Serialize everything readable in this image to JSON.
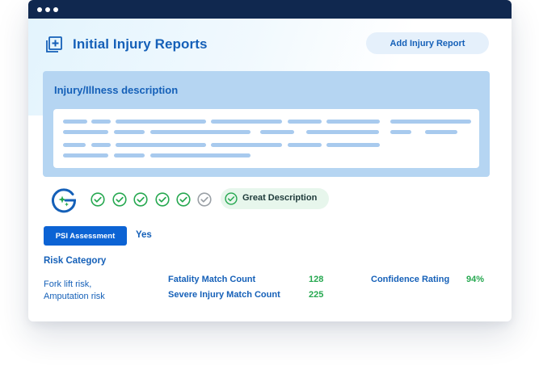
{
  "window": {
    "controls": [
      "dot",
      "dot",
      "dot"
    ]
  },
  "header": {
    "title": "Initial Injury Reports",
    "icon": "add-document-icon",
    "add_button_label": "Add Injury Report"
  },
  "description": {
    "label": "Injury/Illness description",
    "content_state": "redacted-placeholder-lines"
  },
  "quality": {
    "logo": "g-sparkle-logo",
    "checks": [
      {
        "state": "passed"
      },
      {
        "state": "passed"
      },
      {
        "state": "passed"
      },
      {
        "state": "passed"
      },
      {
        "state": "passed"
      },
      {
        "state": "pending"
      }
    ],
    "badge_label": "Great Description"
  },
  "psi": {
    "button_label": "PSI Assessment",
    "value": "Yes"
  },
  "risk": {
    "heading": "Risk Category",
    "lines": [
      "Fork lift risk,",
      "Amputation risk"
    ]
  },
  "stats": {
    "fatality_label": "Fatality Match Count",
    "fatality_value": "128",
    "severe_label": "Severe Injury Match Count",
    "severe_value": "225",
    "confidence_label": "Confidence Rating",
    "confidence_value": "94%"
  },
  "colors": {
    "titlebar": "#10284f",
    "primary": "#1560b8",
    "button_blue": "#0c63d4",
    "panel": "#b5d5f2",
    "success": "#26a850",
    "success_bg": "#e7f6ec"
  }
}
